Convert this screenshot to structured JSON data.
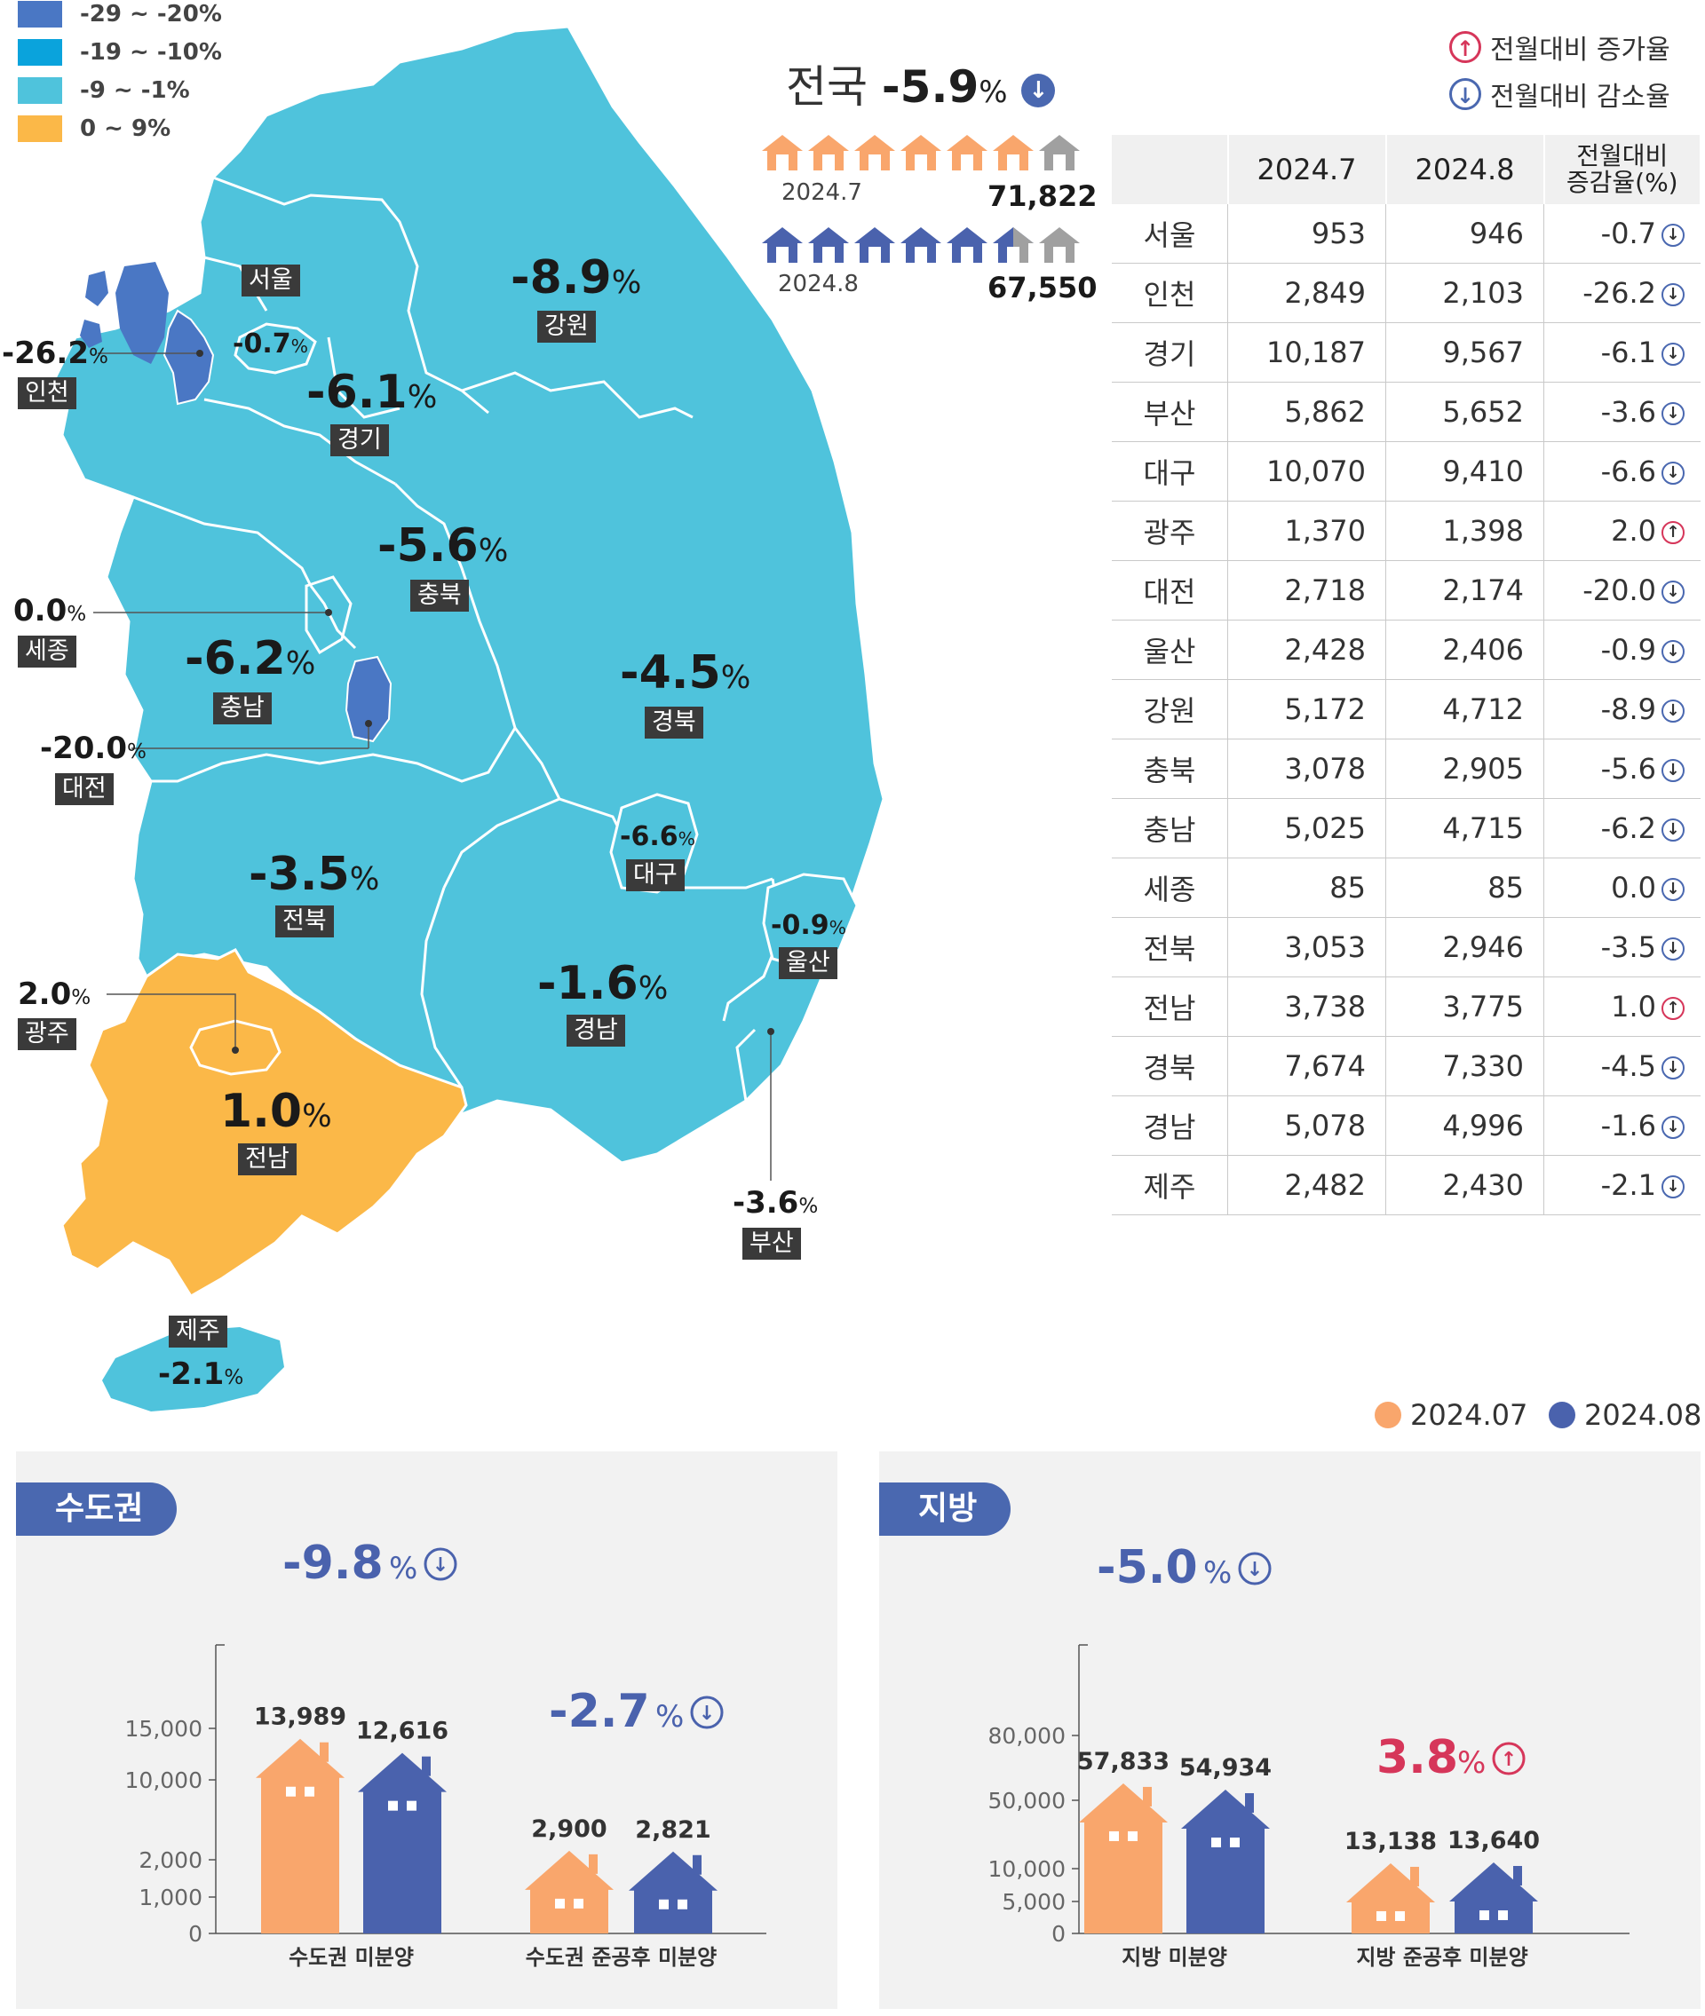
{
  "legend": [
    {
      "label": "-29 ~ -20%",
      "color": "#4a77c4"
    },
    {
      "label": "-19 ~ -10%",
      "color": "#0aa3dc"
    },
    {
      "label": "-9 ~ -1%",
      "color": "#4fc3dc"
    },
    {
      "label": "0 ~ 9%",
      "color": "#fbb848"
    }
  ],
  "national": {
    "label": "전국",
    "value": "-5.9",
    "unit": "%"
  },
  "houses_compare": {
    "jul": {
      "label": "2024.7",
      "value": "71,822"
    },
    "aug": {
      "label": "2024.8",
      "value": "67,550"
    }
  },
  "rate_legend": {
    "up": "전월대비 증가율",
    "down": "전월대비 감소율"
  },
  "map_regions": [
    {
      "name": "서울",
      "value": "-0.7"
    },
    {
      "name": "인천",
      "value": "-26.2"
    },
    {
      "name": "경기",
      "value": "-6.1"
    },
    {
      "name": "강원",
      "value": "-8.9"
    },
    {
      "name": "충북",
      "value": "-5.6"
    },
    {
      "name": "세종",
      "value": "0.0"
    },
    {
      "name": "충남",
      "value": "-6.2"
    },
    {
      "name": "대전",
      "value": "-20.0"
    },
    {
      "name": "경북",
      "value": "-4.5"
    },
    {
      "name": "대구",
      "value": "-6.6"
    },
    {
      "name": "전북",
      "value": "-3.5"
    },
    {
      "name": "울산",
      "value": "-0.9"
    },
    {
      "name": "광주",
      "value": "2.0"
    },
    {
      "name": "경남",
      "value": "-1.6"
    },
    {
      "name": "전남",
      "value": "1.0"
    },
    {
      "name": "부산",
      "value": "-3.6"
    },
    {
      "name": "제주",
      "value": "-2.1"
    }
  ],
  "table": {
    "headers": [
      "",
      "2024.7",
      "2024.8",
      "전월대비",
      "증감율(%)"
    ],
    "rows": [
      {
        "region": "서울",
        "jul": "953",
        "aug": "946",
        "rate": "-0.7",
        "dir": "down"
      },
      {
        "region": "인천",
        "jul": "2,849",
        "aug": "2,103",
        "rate": "-26.2",
        "dir": "down"
      },
      {
        "region": "경기",
        "jul": "10,187",
        "aug": "9,567",
        "rate": "-6.1",
        "dir": "down"
      },
      {
        "region": "부산",
        "jul": "5,862",
        "aug": "5,652",
        "rate": "-3.6",
        "dir": "down"
      },
      {
        "region": "대구",
        "jul": "10,070",
        "aug": "9,410",
        "rate": "-6.6",
        "dir": "down"
      },
      {
        "region": "광주",
        "jul": "1,370",
        "aug": "1,398",
        "rate": "2.0",
        "dir": "up"
      },
      {
        "region": "대전",
        "jul": "2,718",
        "aug": "2,174",
        "rate": "-20.0",
        "dir": "down"
      },
      {
        "region": "울산",
        "jul": "2,428",
        "aug": "2,406",
        "rate": "-0.9",
        "dir": "down"
      },
      {
        "region": "강원",
        "jul": "5,172",
        "aug": "4,712",
        "rate": "-8.9",
        "dir": "down"
      },
      {
        "region": "충북",
        "jul": "3,078",
        "aug": "2,905",
        "rate": "-5.6",
        "dir": "down"
      },
      {
        "region": "충남",
        "jul": "5,025",
        "aug": "4,715",
        "rate": "-6.2",
        "dir": "down"
      },
      {
        "region": "세종",
        "jul": "85",
        "aug": "85",
        "rate": "0.0",
        "dir": "down"
      },
      {
        "region": "전북",
        "jul": "3,053",
        "aug": "2,946",
        "rate": "-3.5",
        "dir": "down"
      },
      {
        "region": "전남",
        "jul": "3,738",
        "aug": "3,775",
        "rate": "1.0",
        "dir": "up"
      },
      {
        "region": "경북",
        "jul": "7,674",
        "aug": "7,330",
        "rate": "-4.5",
        "dir": "down"
      },
      {
        "region": "경남",
        "jul": "5,078",
        "aug": "4,996",
        "rate": "-1.6",
        "dir": "down"
      },
      {
        "region": "제주",
        "jul": "2,482",
        "aug": "2,430",
        "rate": "-2.1",
        "dir": "down"
      }
    ]
  },
  "bar_legend": [
    {
      "label": "2024.07",
      "color": "#f9a66c"
    },
    {
      "label": "2024.08",
      "color": "#4a62ad"
    }
  ],
  "chart_data": [
    {
      "type": "bar",
      "title": "수도권",
      "scale": "broken",
      "yticks": [
        "0",
        "1,000",
        "2,000",
        "10,000",
        "15,000"
      ],
      "categories": [
        "수도권 미분양",
        "수도권 준공후 미분양"
      ],
      "series": [
        {
          "name": "2024.07",
          "values": [
            13989,
            2900
          ],
          "labels": [
            "13,989",
            "2,900"
          ]
        },
        {
          "name": "2024.08",
          "values": [
            12616,
            2821
          ],
          "labels": [
            "12,616",
            "2,821"
          ]
        }
      ],
      "changes": [
        {
          "value": "-9.8",
          "unit": "%",
          "dir": "down"
        },
        {
          "value": "-2.7",
          "unit": "%",
          "dir": "down"
        }
      ]
    },
    {
      "type": "bar",
      "title": "지방",
      "scale": "broken",
      "yticks": [
        "0",
        "5,000",
        "10,000",
        "50,000",
        "80,000"
      ],
      "categories": [
        "지방 미분양",
        "지방 준공후 미분양"
      ],
      "series": [
        {
          "name": "2024.07",
          "values": [
            57833,
            13138
          ],
          "labels": [
            "57,833",
            "13,138"
          ]
        },
        {
          "name": "2024.08",
          "values": [
            54934,
            13640
          ],
          "labels": [
            "54,934",
            "13,640"
          ]
        }
      ],
      "changes": [
        {
          "value": "-5.0",
          "unit": "%",
          "dir": "down"
        },
        {
          "value": "3.8",
          "unit": "%",
          "dir": "up"
        }
      ]
    }
  ]
}
